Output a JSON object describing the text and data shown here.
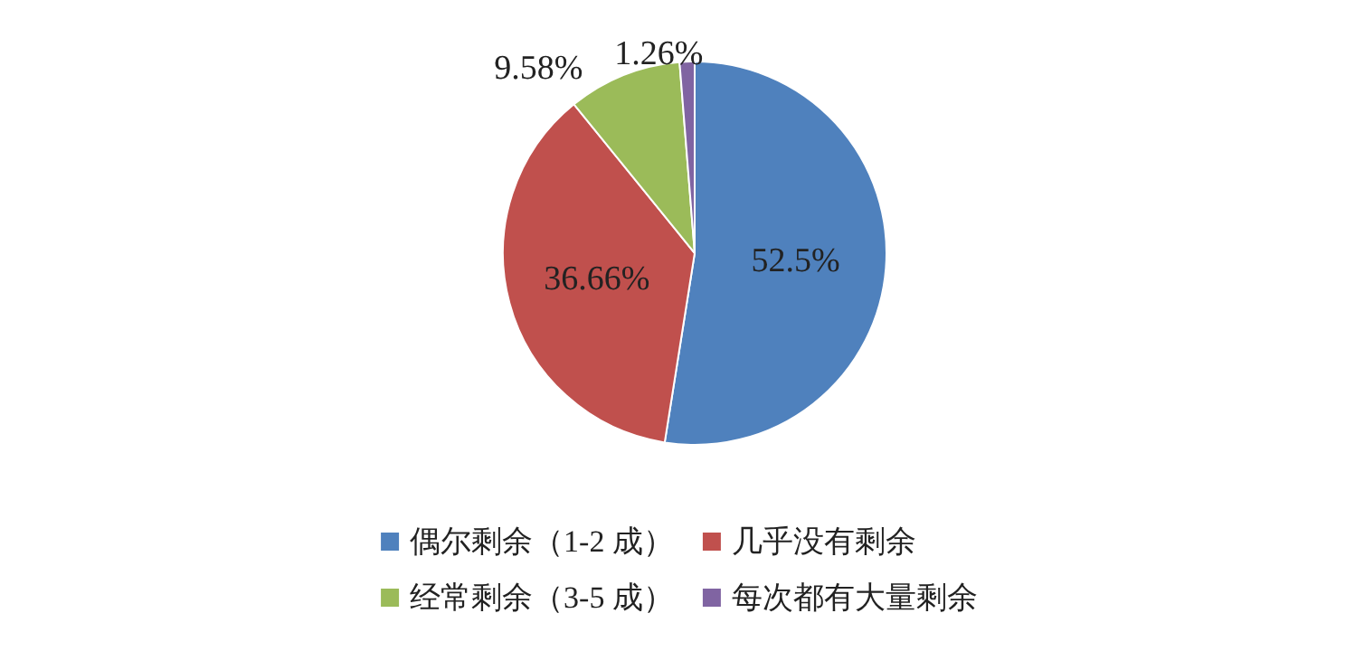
{
  "chart_data": {
    "type": "pie",
    "categories": [
      "偶尔剩余（1-2 成）",
      "几乎没有剩余",
      "经常剩余（3-5 成）",
      "每次都有大量剩余"
    ],
    "values": [
      52.5,
      36.66,
      9.58,
      1.26
    ],
    "colors": [
      "#4f81bd",
      "#c0504d",
      "#9bbb59",
      "#8064a2"
    ],
    "value_labels": [
      "52.5%",
      "36.66%",
      "9.58%",
      "1.26%"
    ],
    "legend": "bottom"
  }
}
